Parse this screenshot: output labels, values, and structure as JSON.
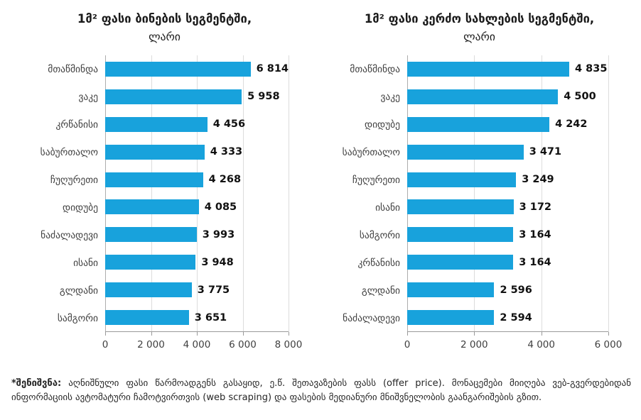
{
  "chart_data": [
    {
      "type": "bar",
      "orientation": "horizontal",
      "title": "1მ² ფასი ბინების სეგმენტში,",
      "subtitle": "ლარი",
      "categories": [
        "მთაწმინდა",
        "ვაკე",
        "კრწანისი",
        "საბურთალო",
        "ჩუღურეთი",
        "დიდუბე",
        "ნაძალადევი",
        "ისანი",
        "გლდანი",
        "სამგორი"
      ],
      "values": [
        6814,
        5958,
        4456,
        4333,
        4268,
        4085,
        3993,
        3948,
        3775,
        3651
      ],
      "value_labels": [
        "6 814",
        "5 958",
        "4 456",
        "4 333",
        "4 268",
        "4 085",
        "3 993",
        "3 948",
        "3 775",
        "3 651"
      ],
      "xlim": [
        0,
        8000
      ],
      "tick_values": [
        0,
        2000,
        4000,
        6000,
        8000
      ],
      "tick_labels": [
        "0",
        "2 000",
        "4 000",
        "6 000",
        "8 000"
      ],
      "bar_color": "#18A2DC",
      "grid": true,
      "legend": "none"
    },
    {
      "type": "bar",
      "orientation": "horizontal",
      "title": "1მ² ფასი კერძო სახლების სეგმენტში,",
      "subtitle": "ლარი",
      "categories": [
        "მთაწმინდა",
        "ვაკე",
        "დიდუბე",
        "საბურთალო",
        "ჩუღურეთი",
        "ისანი",
        "სამგორი",
        "კრწანისი",
        "გლდანი",
        "ნაძალადევი"
      ],
      "values": [
        4835,
        4500,
        4242,
        3471,
        3249,
        3172,
        3164,
        3164,
        2596,
        2594
      ],
      "value_labels": [
        "4 835",
        "4 500",
        "4 242",
        "3 471",
        "3 249",
        "3 172",
        "3 164",
        "3 164",
        "2 596",
        "2 594"
      ],
      "xlim": [
        0,
        6000
      ],
      "tick_values": [
        0,
        2000,
        4000,
        6000
      ],
      "tick_labels": [
        "0",
        "2 000",
        "4 000",
        "6 000"
      ],
      "bar_color": "#18A2DC",
      "grid": true,
      "legend": "none"
    }
  ],
  "footnote": {
    "lead": "*შენიშვნა:",
    "text": " აღნიშნული ფასი წარმოადგენს გასაყიდ, ე.წ. შეთავაზების ფასს (offer price). მონაცემები მიიღება ვებ-გვერდებიდან ინფორმაციის ავტომატური ჩამოტვირთვის (web scraping) და ფასების მედიანური მნიშვნელობის გაანგარიშების გზით."
  },
  "colors": {
    "bar": "#18A2DC",
    "gridline": "#DCDCDC",
    "axis": "#9A9A9A",
    "text": "#1A1A1A"
  }
}
